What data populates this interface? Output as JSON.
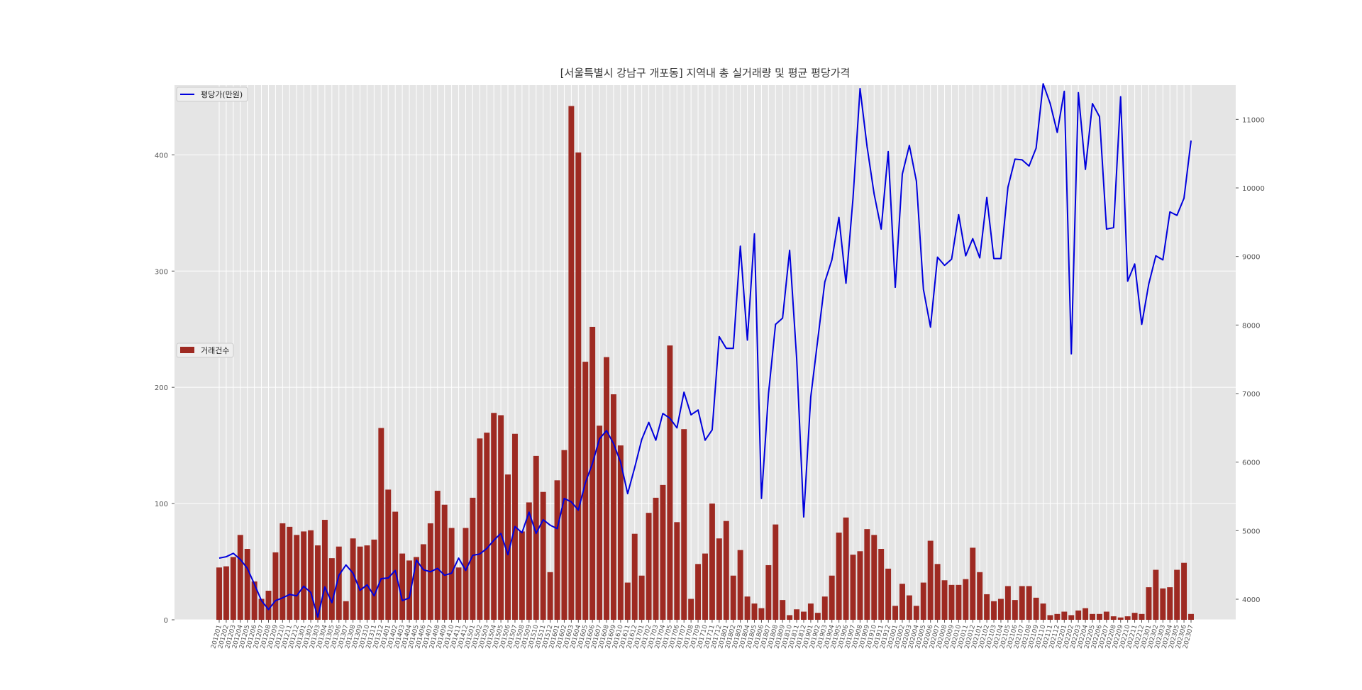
{
  "chart_data": {
    "type": "bar+line",
    "title": "[서울특별시 강남구 개포동] 지역내 총 실거래량 및 평균 평당가격",
    "grid": true,
    "legend": [
      {
        "name": "평당가(만원)",
        "placement": "top-left",
        "color": "#0000dd"
      },
      {
        "name": "거래건수",
        "placement": "center-left",
        "color": "#9e2a22"
      }
    ],
    "y_left": {
      "lim": [
        0,
        460
      ],
      "ticks": [
        0,
        100,
        200,
        300,
        400
      ]
    },
    "y_right": {
      "lim": [
        3700,
        11500
      ],
      "ticks": [
        4000,
        5000,
        6000,
        7000,
        8000,
        9000,
        10000,
        11000
      ]
    },
    "x": [
      "201201",
      "201202",
      "201203",
      "201204",
      "201205",
      "201206",
      "201207",
      "201208",
      "201209",
      "201210",
      "201211",
      "201212",
      "201301",
      "201302",
      "201303",
      "201304",
      "201305",
      "201306",
      "201307",
      "201308",
      "201309",
      "201310",
      "201311",
      "201312",
      "201401",
      "201402",
      "201403",
      "201404",
      "201405",
      "201406",
      "201407",
      "201408",
      "201409",
      "201410",
      "201411",
      "201412",
      "201501",
      "201502",
      "201503",
      "201504",
      "201505",
      "201506",
      "201507",
      "201508",
      "201509",
      "201510",
      "201511",
      "201512",
      "201601",
      "201602",
      "201603",
      "201604",
      "201605",
      "201606",
      "201607",
      "201608",
      "201609",
      "201610",
      "201611",
      "201612",
      "201701",
      "201702",
      "201703",
      "201704",
      "201705",
      "201706",
      "201707",
      "201708",
      "201709",
      "201710",
      "201711",
      "201712",
      "201801",
      "201802",
      "201803",
      "201804",
      "201805",
      "201806",
      "201807",
      "201808",
      "201809",
      "201810",
      "201811",
      "201812",
      "201901",
      "201902",
      "201903",
      "201904",
      "201905",
      "201906",
      "201907",
      "201908",
      "201909",
      "201910",
      "201911",
      "201912",
      "202001",
      "202002",
      "202003",
      "202004",
      "202005",
      "202006",
      "202007",
      "202008",
      "202009",
      "202010",
      "202011",
      "202012",
      "202101",
      "202102",
      "202103",
      "202104",
      "202105",
      "202106",
      "202107",
      "202108",
      "202109",
      "202110",
      "202111",
      "202112",
      "202201",
      "202202",
      "202203",
      "202204",
      "202205",
      "202206",
      "202207",
      "202208",
      "202209",
      "202210",
      "202211",
      "202212",
      "202301",
      "202302",
      "202303",
      "202304",
      "202305",
      "202306",
      "202307"
    ],
    "series": [
      {
        "name": "거래건수",
        "kind": "bar",
        "color": "#9e2a22",
        "values": [
          45,
          46,
          54,
          73,
          61,
          33,
          18,
          25,
          58,
          83,
          80,
          73,
          76,
          77,
          64,
          86,
          53,
          63,
          16,
          70,
          63,
          64,
          69,
          165,
          112,
          93,
          57,
          51,
          54,
          65,
          83,
          111,
          99,
          79,
          45,
          79,
          105,
          156,
          161,
          178,
          176,
          125,
          160,
          76,
          101,
          141,
          110,
          41,
          120,
          146,
          442,
          402,
          222,
          252,
          167,
          226,
          194,
          150,
          32,
          74,
          38,
          92,
          105,
          116,
          236,
          84,
          164,
          18,
          48,
          57,
          100,
          70,
          85,
          38,
          60,
          20,
          14,
          10,
          47,
          82,
          17,
          4,
          9,
          7,
          14,
          6,
          20,
          38,
          75,
          88,
          56,
          59,
          78,
          73,
          61,
          44,
          12,
          31,
          21,
          12,
          32,
          68,
          48,
          34,
          30,
          30,
          35,
          62,
          41,
          22,
          16,
          18,
          29,
          17,
          29,
          29,
          19,
          14,
          4,
          5,
          7,
          4,
          8,
          10,
          5,
          5,
          7,
          3,
          2,
          3,
          6,
          5,
          28,
          43,
          27,
          28,
          43,
          49,
          5
        ]
      },
      {
        "name": "평당가(만원)",
        "kind": "line",
        "color": "#0000dd",
        "values": [
          4600,
          4620,
          4670,
          4580,
          4450,
          4220,
          3980,
          3850,
          3980,
          4020,
          4070,
          4050,
          4190,
          4100,
          3740,
          4180,
          3950,
          4350,
          4500,
          4380,
          4130,
          4210,
          4050,
          4300,
          4310,
          4420,
          3980,
          4020,
          4570,
          4430,
          4400,
          4450,
          4350,
          4380,
          4600,
          4420,
          4640,
          4660,
          4740,
          4860,
          4960,
          4650,
          5060,
          4970,
          5270,
          4960,
          5160,
          5080,
          5030,
          5470,
          5420,
          5300,
          5700,
          5980,
          6340,
          6460,
          6270,
          6000,
          5540,
          5920,
          6330,
          6580,
          6320,
          6710,
          6640,
          6500,
          7020,
          6690,
          6760,
          6320,
          6470,
          7830,
          7660,
          7660,
          9150,
          7780,
          9330,
          5470,
          7000,
          8010,
          8100,
          9090,
          7510,
          5200,
          6950,
          7790,
          8630,
          8950,
          9570,
          8610,
          9850,
          11450,
          10600,
          9910,
          9400,
          10530,
          8550,
          10200,
          10620,
          10100,
          8520,
          7970,
          8990,
          8870,
          8960,
          9610,
          9010,
          9260,
          8980,
          9860,
          8970,
          8970,
          10010,
          10420,
          10410,
          10320,
          10580,
          11520,
          11230,
          10810,
          11410,
          7580,
          11390,
          10270,
          11230,
          11040,
          9400,
          9420,
          11330,
          8640,
          8890,
          8010,
          8600,
          9010,
          8950,
          9650,
          9600,
          9850,
          10690
        ]
      }
    ]
  }
}
